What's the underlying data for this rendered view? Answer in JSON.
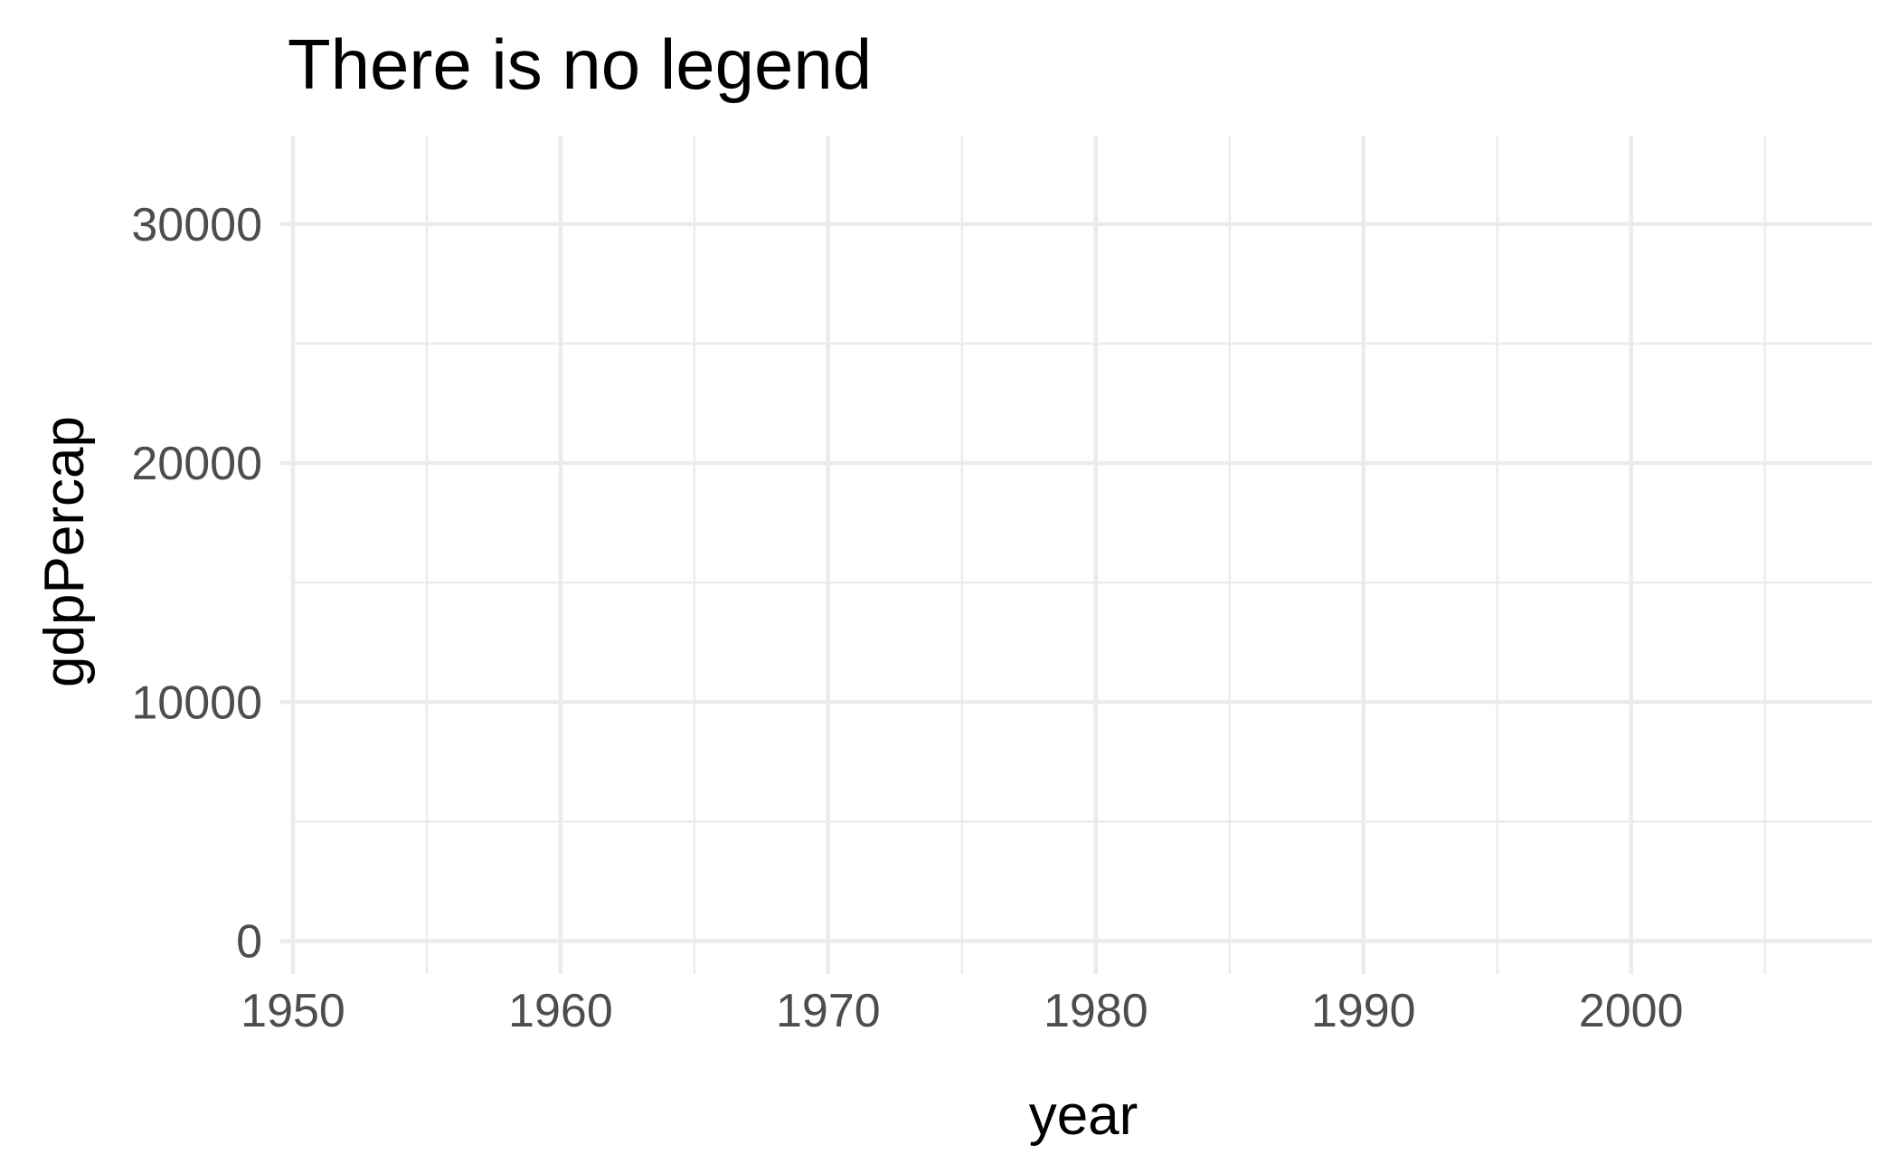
{
  "chart_data": {
    "type": "scatter",
    "title": "There is no legend",
    "xlabel": "year",
    "ylabel": "gdpPercap",
    "xlim": [
      1950,
      2009
    ],
    "ylim": [
      -850,
      33700
    ],
    "x_ticks": [
      1950,
      1960,
      1970,
      1980,
      1990,
      2000
    ],
    "y_ticks": [
      0,
      10000,
      20000,
      30000
    ],
    "x_minor_ticks": [
      1955,
      1965,
      1975,
      1985,
      1995,
      2005
    ],
    "y_minor_ticks": [
      5000,
      15000,
      25000
    ],
    "grid": true,
    "legend": "none",
    "series": [],
    "grid_color": "#ebebeb",
    "tick_label_color": "#4d4d4d",
    "background": "#ffffff"
  }
}
